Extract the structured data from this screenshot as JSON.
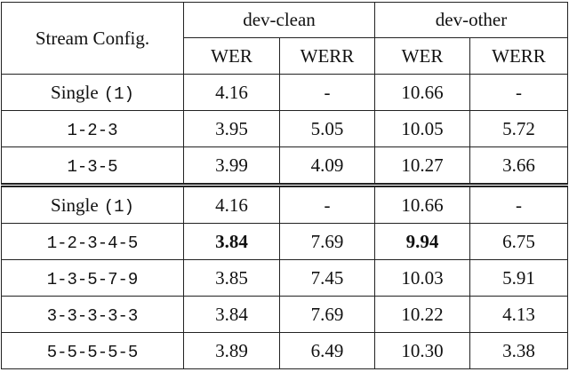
{
  "header": {
    "stream_config": "Stream Config.",
    "groups": [
      "dev-clean",
      "dev-other"
    ],
    "metrics": [
      "WER",
      "WERR",
      "WER",
      "WERR"
    ]
  },
  "table": {
    "groups": [
      {
        "rows": [
          {
            "config": {
              "text": "Single",
              "code": "(1)"
            },
            "cells": [
              "4.16",
              "-",
              "10.66",
              "-"
            ]
          },
          {
            "config": {
              "code": "1-2-3"
            },
            "cells": [
              "3.95",
              "5.05",
              "10.05",
              "5.72"
            ]
          },
          {
            "config": {
              "code": "1-3-5"
            },
            "cells": [
              "3.99",
              "4.09",
              "10.27",
              "3.66"
            ]
          }
        ]
      },
      {
        "rows": [
          {
            "config": {
              "text": "Single",
              "code": "(1)"
            },
            "cells": [
              "4.16",
              "-",
              "10.66",
              "-"
            ]
          },
          {
            "config": {
              "code": "1-2-3-4-5"
            },
            "cells": [
              {
                "text": "3.84",
                "bold": true
              },
              "7.69",
              {
                "text": "9.94",
                "bold": true
              },
              "6.75"
            ]
          },
          {
            "config": {
              "code": "1-3-5-7-9"
            },
            "cells": [
              "3.85",
              "7.45",
              "10.03",
              "5.91"
            ]
          },
          {
            "config": {
              "code": "3-3-3-3-3"
            },
            "cells": [
              "3.84",
              "7.69",
              "10.22",
              "4.13"
            ]
          },
          {
            "config": {
              "code": "5-5-5-5-5"
            },
            "cells": [
              "3.89",
              "6.49",
              "10.30",
              "3.38"
            ]
          }
        ]
      }
    ]
  }
}
